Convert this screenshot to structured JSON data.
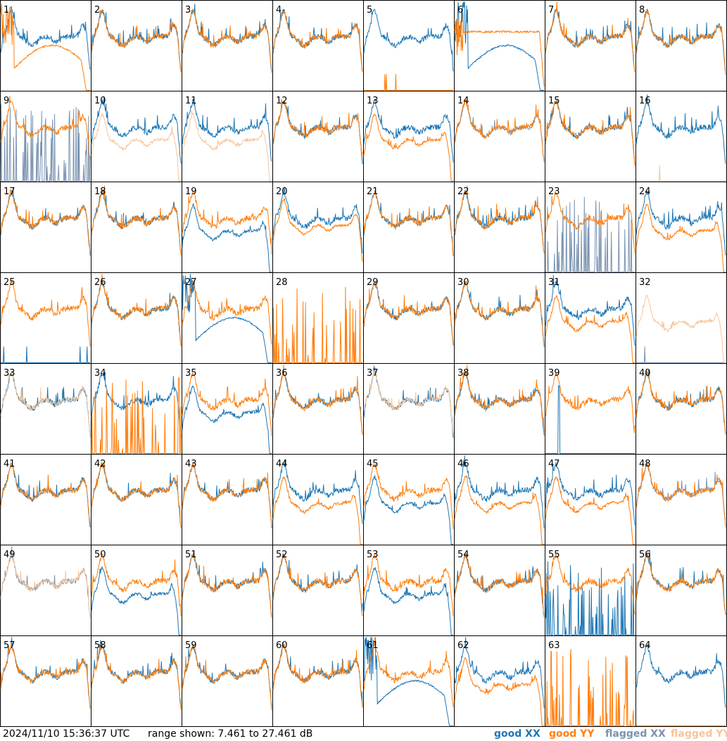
{
  "footer": {
    "timestamp": "2024/11/10 15:36:37 UTC",
    "range": "range shown: 7.461 to 27.461 dB"
  },
  "legend": [
    {
      "key": "good_xx",
      "label": "good XX",
      "color": "#1f77b4"
    },
    {
      "key": "good_yy",
      "label": "good YY",
      "color": "#ff7f0e"
    },
    {
      "key": "flagged_xx",
      "label": "flagged XX",
      "color": "#7a93b0"
    },
    {
      "key": "flagged_yy",
      "label": "flagged YY",
      "color": "#f7c49a"
    }
  ],
  "chart_data": {
    "type": "line",
    "layout": "8x8 small multiples, one panel per tile",
    "ylim_db": [
      7.461,
      27.461
    ],
    "x": "frequency channel (unlabeled)",
    "colors": {
      "good_xx": "#1f77b4",
      "good_yy": "#ff7f0e",
      "flagged_xx": "#7a93b0",
      "flagged_yy": "#f7c49a"
    },
    "panels": [
      {
        "tile": "1",
        "xx": "good:normal",
        "yy": "good:deep"
      },
      {
        "tile": "2",
        "xx": "good:normal",
        "yy": "good:normal"
      },
      {
        "tile": "3",
        "xx": "good:normal",
        "yy": "good:normal"
      },
      {
        "tile": "4",
        "xx": "good:normal",
        "yy": "good:normal"
      },
      {
        "tile": "5",
        "xx": "good:normal",
        "yy": "good:flat"
      },
      {
        "tile": "6",
        "xx": "good:deep",
        "yy": "good:high"
      },
      {
        "tile": "7",
        "xx": "good:normal",
        "yy": "good:normal"
      },
      {
        "tile": "8",
        "xx": "good:normal",
        "yy": "good:normal"
      },
      {
        "tile": "9",
        "xx": "flagged:spiky",
        "yy": "good:normal"
      },
      {
        "tile": "10",
        "xx": "good:normal",
        "yy": "flagged:low"
      },
      {
        "tile": "11",
        "xx": "good:normal",
        "yy": "flagged:low"
      },
      {
        "tile": "12",
        "xx": "good:normal",
        "yy": "good:normal"
      },
      {
        "tile": "13",
        "xx": "good:normal",
        "yy": "good:low"
      },
      {
        "tile": "14",
        "xx": "flagged:normal",
        "yy": "good:normal"
      },
      {
        "tile": "15",
        "xx": "good:normal",
        "yy": "good:normal"
      },
      {
        "tile": "16",
        "xx": "good:normal",
        "yy": "flagged:flat"
      },
      {
        "tile": "17",
        "xx": "good:normal",
        "yy": "good:normal"
      },
      {
        "tile": "18",
        "xx": "good:normal",
        "yy": "good:normal"
      },
      {
        "tile": "19",
        "xx": "good:low",
        "yy": "good:normal"
      },
      {
        "tile": "20",
        "xx": "good:normal",
        "yy": "good:mid"
      },
      {
        "tile": "21",
        "xx": "good:normal",
        "yy": "good:normal"
      },
      {
        "tile": "22",
        "xx": "good:normal",
        "yy": "good:normal"
      },
      {
        "tile": "23",
        "xx": "flagged:spiky",
        "yy": "good:normal"
      },
      {
        "tile": "24",
        "xx": "good:normal",
        "yy": "good:low"
      },
      {
        "tile": "25",
        "xx": "good:flat",
        "yy": "good:normal"
      },
      {
        "tile": "26",
        "xx": "good:normal",
        "yy": "good:normal"
      },
      {
        "tile": "27",
        "xx": "good:deep",
        "yy": "good:normal"
      },
      {
        "tile": "28",
        "xx": "none",
        "yy": "good:spiky"
      },
      {
        "tile": "29",
        "xx": "good:normal",
        "yy": "good:normal"
      },
      {
        "tile": "30",
        "xx": "good:normal",
        "yy": "good:normal"
      },
      {
        "tile": "31",
        "xx": "good:normal",
        "yy": "good:low"
      },
      {
        "tile": "32",
        "xx": "flagged:flat",
        "yy": "flagged:low"
      },
      {
        "tile": "33",
        "xx": "good:normal",
        "yy": "flagged:normal"
      },
      {
        "tile": "34",
        "xx": "good:normal",
        "yy": "good:spiky"
      },
      {
        "tile": "35",
        "xx": "good:low",
        "yy": "good:normal"
      },
      {
        "tile": "36",
        "xx": "good:normal",
        "yy": "good:normal"
      },
      {
        "tile": "37",
        "xx": "good:normal",
        "yy": "flagged:normal"
      },
      {
        "tile": "38",
        "xx": "good:normal",
        "yy": "good:normal"
      },
      {
        "tile": "39",
        "xx": "good:spike",
        "yy": "good:normal"
      },
      {
        "tile": "40",
        "xx": "good:normal",
        "yy": "good:normal"
      },
      {
        "tile": "41",
        "xx": "good:normal",
        "yy": "good:normal"
      },
      {
        "tile": "42",
        "xx": "good:normal",
        "yy": "good:normal"
      },
      {
        "tile": "43",
        "xx": "good:normal",
        "yy": "good:normal"
      },
      {
        "tile": "44",
        "xx": "good:normal",
        "yy": "good:low"
      },
      {
        "tile": "45",
        "xx": "good:low",
        "yy": "good:normal"
      },
      {
        "tile": "46",
        "xx": "good:normal",
        "yy": "good:low"
      },
      {
        "tile": "47",
        "xx": "good:normal",
        "yy": "good:low"
      },
      {
        "tile": "48",
        "xx": "flagged:normal",
        "yy": "good:normal"
      },
      {
        "tile": "49",
        "xx": "flagged:normal",
        "yy": "flagged:normal"
      },
      {
        "tile": "50",
        "xx": "good:low",
        "yy": "good:normal"
      },
      {
        "tile": "51",
        "xx": "good:normal",
        "yy": "good:normal"
      },
      {
        "tile": "52",
        "xx": "good:normal",
        "yy": "good:normal"
      },
      {
        "tile": "53",
        "xx": "good:low",
        "yy": "good:normal"
      },
      {
        "tile": "54",
        "xx": "good:normal",
        "yy": "good:normal"
      },
      {
        "tile": "55",
        "xx": "good:spiky",
        "yy": "good:normal"
      },
      {
        "tile": "56",
        "xx": "good:normal",
        "yy": "good:normal"
      },
      {
        "tile": "57",
        "xx": "good:normal",
        "yy": "good:normal"
      },
      {
        "tile": "58",
        "xx": "good:normal",
        "yy": "good:normal"
      },
      {
        "tile": "59",
        "xx": "good:normal",
        "yy": "good:normal"
      },
      {
        "tile": "60",
        "xx": "good:normal",
        "yy": "good:normal"
      },
      {
        "tile": "61",
        "xx": "good:deep",
        "yy": "good:normal"
      },
      {
        "tile": "62",
        "xx": "good:normal",
        "yy": "good:low"
      },
      {
        "tile": "63",
        "xx": "none",
        "yy": "good:spiky"
      },
      {
        "tile": "64",
        "xx": "good:normal",
        "yy": "good:flat"
      }
    ]
  }
}
